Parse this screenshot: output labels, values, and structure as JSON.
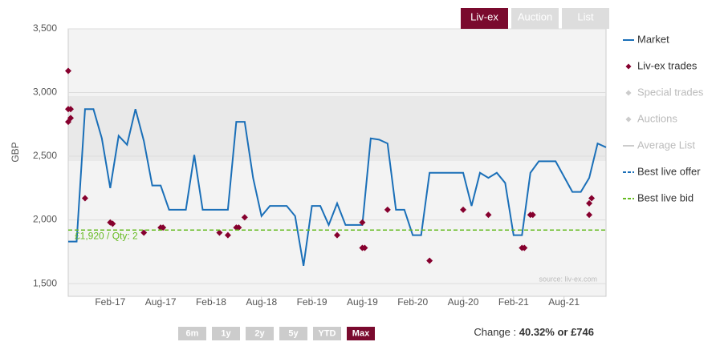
{
  "chart_data": {
    "type": "line",
    "y_label": "GBP",
    "tabs": [
      "Liv-ex",
      "Auction",
      "List"
    ],
    "active_tab": 0,
    "ranges": [
      "6m",
      "1y",
      "2y",
      "5y",
      "YTD",
      "Max"
    ],
    "active_range": 5,
    "change": {
      "label": "Change :",
      "value": "40.32% or £746"
    },
    "source": "source: liv-ex.com",
    "categories": [
      null,
      null,
      null,
      null,
      null,
      "Feb-17",
      null,
      null,
      null,
      null,
      null,
      "Aug-17",
      null,
      null,
      null,
      null,
      null,
      "Feb-18",
      null,
      null,
      null,
      null,
      null,
      "Aug-18",
      null,
      null,
      null,
      null,
      null,
      "Feb-19",
      null,
      null,
      null,
      null,
      null,
      "Aug-19",
      null,
      null,
      null,
      null,
      null,
      "Feb-20",
      null,
      null,
      null,
      null,
      null,
      "Aug-20",
      null,
      null,
      null,
      null,
      null,
      "Feb-21",
      null,
      null,
      null,
      null,
      null,
      "Aug-21",
      null,
      null,
      null,
      null,
      null
    ],
    "ylim": [
      1400,
      3500
    ],
    "yticks": [
      {
        "value": 1500,
        "label": "1,500"
      },
      {
        "value": 2000,
        "label": "2,000"
      },
      {
        "value": 2500,
        "label": "2,500"
      },
      {
        "value": 3000,
        "label": "3,000"
      },
      {
        "value": 3500,
        "label": "3,500"
      }
    ],
    "grid": true,
    "legend": "right",
    "series": [
      {
        "name": "Market",
        "type": "line",
        "color": "#1a6fb8",
        "visible": true,
        "values": [
          1830,
          1830,
          2870,
          2870,
          2640,
          2250,
          2660,
          2590,
          2870,
          2620,
          2270,
          2270,
          2080,
          2080,
          2080,
          2510,
          2080,
          2080,
          2080,
          2080,
          2770,
          2770,
          2330,
          2030,
          2110,
          2110,
          2110,
          2030,
          1640,
          2110,
          2110,
          1960,
          2130,
          1960,
          1960,
          1960,
          2640,
          2630,
          2600,
          2080,
          2080,
          1880,
          1880,
          2370,
          2370,
          2370,
          2370,
          2370,
          2110,
          2370,
          2330,
          2370,
          2290,
          1880,
          1880,
          2370,
          2460,
          2460,
          2460,
          2340,
          2220,
          2220,
          2330,
          2600,
          2570
        ]
      },
      {
        "name": "Liv-ex trades",
        "type": "scatter",
        "color": "#86002e",
        "visible": true,
        "values": [
          [
            3170,
            2870,
            2870,
            2800,
            2770
          ],
          null,
          [
            2170
          ],
          null,
          null,
          [
            1980,
            1970
          ],
          null,
          null,
          null,
          [
            1900
          ],
          null,
          [
            1940,
            1940
          ],
          null,
          null,
          null,
          null,
          null,
          null,
          [
            1900
          ],
          [
            1880
          ],
          [
            1940,
            1940
          ],
          [
            2020
          ],
          null,
          null,
          null,
          null,
          null,
          null,
          null,
          null,
          null,
          null,
          [
            1880
          ],
          null,
          null,
          [
            1780,
            1780,
            1980
          ],
          null,
          null,
          [
            2080
          ],
          null,
          null,
          null,
          null,
          [
            1680
          ],
          null,
          null,
          null,
          [
            2080
          ],
          null,
          null,
          [
            2040
          ],
          null,
          null,
          null,
          [
            1780,
            1780
          ],
          [
            2040,
            2040
          ],
          null,
          null,
          null,
          null,
          null,
          null,
          [
            2040,
            2170,
            2130
          ],
          null,
          null
        ]
      },
      {
        "name": "Special trades",
        "type": "scatter",
        "color": "#cccccc",
        "visible": false
      },
      {
        "name": "Auctions",
        "type": "scatter",
        "color": "#cccccc",
        "visible": false
      },
      {
        "name": "Average List",
        "type": "line",
        "color": "#cccccc",
        "visible": false
      },
      {
        "name": "Best live offer",
        "type": "hline",
        "dash": true,
        "color": "#1a6fb8",
        "visible": true
      },
      {
        "name": "Best live bid",
        "type": "hline",
        "dash": true,
        "color": "#66bb22",
        "visible": true,
        "value": 1920,
        "value_label": "£1,920 / Qty: 2"
      }
    ]
  }
}
